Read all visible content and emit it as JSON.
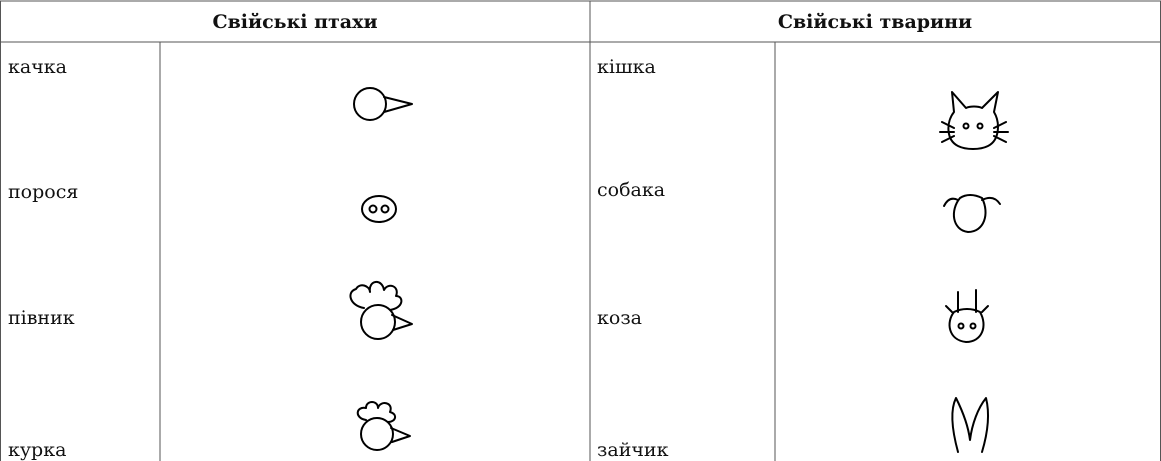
{
  "table": {
    "header": [
      "Свійські птахи",
      "Свійські тварини"
    ],
    "rows": [
      [
        "качка",
        "кішка"
      ],
      [
        "порося",
        "собака"
      ],
      [
        "півник",
        "коза"
      ],
      [
        "курка",
        "зайчик"
      ]
    ]
  }
}
